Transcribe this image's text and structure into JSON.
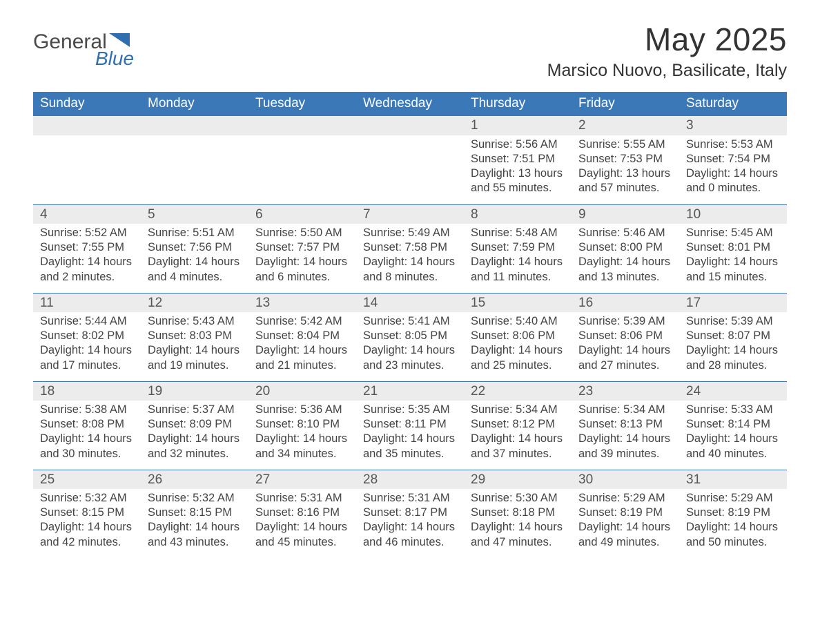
{
  "brand": {
    "name1": "General",
    "name2": "Blue"
  },
  "title": "May 2025",
  "location": "Marsico Nuovo, Basilicate, Italy",
  "colors": {
    "header_bg": "#3b78b8",
    "header_text": "#ffffff",
    "daynum_bg": "#ececec",
    "row_border": "#3b78b8",
    "body_text": "#444444",
    "title_text": "#333333",
    "brand_blue": "#2f6fb0",
    "page_bg": "#ffffff"
  },
  "typography": {
    "title_fontsize": 46,
    "location_fontsize": 25,
    "weekday_fontsize": 19,
    "daynum_fontsize": 19,
    "body_fontsize": 16.5,
    "font_family": "Arial"
  },
  "weekdays": [
    "Sunday",
    "Monday",
    "Tuesday",
    "Wednesday",
    "Thursday",
    "Friday",
    "Saturday"
  ],
  "weeks": [
    [
      {
        "day": "",
        "sunrise": "",
        "sunset": "",
        "daylight": ""
      },
      {
        "day": "",
        "sunrise": "",
        "sunset": "",
        "daylight": ""
      },
      {
        "day": "",
        "sunrise": "",
        "sunset": "",
        "daylight": ""
      },
      {
        "day": "",
        "sunrise": "",
        "sunset": "",
        "daylight": ""
      },
      {
        "day": "1",
        "sunrise": "Sunrise: 5:56 AM",
        "sunset": "Sunset: 7:51 PM",
        "daylight": "Daylight: 13 hours and 55 minutes."
      },
      {
        "day": "2",
        "sunrise": "Sunrise: 5:55 AM",
        "sunset": "Sunset: 7:53 PM",
        "daylight": "Daylight: 13 hours and 57 minutes."
      },
      {
        "day": "3",
        "sunrise": "Sunrise: 5:53 AM",
        "sunset": "Sunset: 7:54 PM",
        "daylight": "Daylight: 14 hours and 0 minutes."
      }
    ],
    [
      {
        "day": "4",
        "sunrise": "Sunrise: 5:52 AM",
        "sunset": "Sunset: 7:55 PM",
        "daylight": "Daylight: 14 hours and 2 minutes."
      },
      {
        "day": "5",
        "sunrise": "Sunrise: 5:51 AM",
        "sunset": "Sunset: 7:56 PM",
        "daylight": "Daylight: 14 hours and 4 minutes."
      },
      {
        "day": "6",
        "sunrise": "Sunrise: 5:50 AM",
        "sunset": "Sunset: 7:57 PM",
        "daylight": "Daylight: 14 hours and 6 minutes."
      },
      {
        "day": "7",
        "sunrise": "Sunrise: 5:49 AM",
        "sunset": "Sunset: 7:58 PM",
        "daylight": "Daylight: 14 hours and 8 minutes."
      },
      {
        "day": "8",
        "sunrise": "Sunrise: 5:48 AM",
        "sunset": "Sunset: 7:59 PM",
        "daylight": "Daylight: 14 hours and 11 minutes."
      },
      {
        "day": "9",
        "sunrise": "Sunrise: 5:46 AM",
        "sunset": "Sunset: 8:00 PM",
        "daylight": "Daylight: 14 hours and 13 minutes."
      },
      {
        "day": "10",
        "sunrise": "Sunrise: 5:45 AM",
        "sunset": "Sunset: 8:01 PM",
        "daylight": "Daylight: 14 hours and 15 minutes."
      }
    ],
    [
      {
        "day": "11",
        "sunrise": "Sunrise: 5:44 AM",
        "sunset": "Sunset: 8:02 PM",
        "daylight": "Daylight: 14 hours and 17 minutes."
      },
      {
        "day": "12",
        "sunrise": "Sunrise: 5:43 AM",
        "sunset": "Sunset: 8:03 PM",
        "daylight": "Daylight: 14 hours and 19 minutes."
      },
      {
        "day": "13",
        "sunrise": "Sunrise: 5:42 AM",
        "sunset": "Sunset: 8:04 PM",
        "daylight": "Daylight: 14 hours and 21 minutes."
      },
      {
        "day": "14",
        "sunrise": "Sunrise: 5:41 AM",
        "sunset": "Sunset: 8:05 PM",
        "daylight": "Daylight: 14 hours and 23 minutes."
      },
      {
        "day": "15",
        "sunrise": "Sunrise: 5:40 AM",
        "sunset": "Sunset: 8:06 PM",
        "daylight": "Daylight: 14 hours and 25 minutes."
      },
      {
        "day": "16",
        "sunrise": "Sunrise: 5:39 AM",
        "sunset": "Sunset: 8:06 PM",
        "daylight": "Daylight: 14 hours and 27 minutes."
      },
      {
        "day": "17",
        "sunrise": "Sunrise: 5:39 AM",
        "sunset": "Sunset: 8:07 PM",
        "daylight": "Daylight: 14 hours and 28 minutes."
      }
    ],
    [
      {
        "day": "18",
        "sunrise": "Sunrise: 5:38 AM",
        "sunset": "Sunset: 8:08 PM",
        "daylight": "Daylight: 14 hours and 30 minutes."
      },
      {
        "day": "19",
        "sunrise": "Sunrise: 5:37 AM",
        "sunset": "Sunset: 8:09 PM",
        "daylight": "Daylight: 14 hours and 32 minutes."
      },
      {
        "day": "20",
        "sunrise": "Sunrise: 5:36 AM",
        "sunset": "Sunset: 8:10 PM",
        "daylight": "Daylight: 14 hours and 34 minutes."
      },
      {
        "day": "21",
        "sunrise": "Sunrise: 5:35 AM",
        "sunset": "Sunset: 8:11 PM",
        "daylight": "Daylight: 14 hours and 35 minutes."
      },
      {
        "day": "22",
        "sunrise": "Sunrise: 5:34 AM",
        "sunset": "Sunset: 8:12 PM",
        "daylight": "Daylight: 14 hours and 37 minutes."
      },
      {
        "day": "23",
        "sunrise": "Sunrise: 5:34 AM",
        "sunset": "Sunset: 8:13 PM",
        "daylight": "Daylight: 14 hours and 39 minutes."
      },
      {
        "day": "24",
        "sunrise": "Sunrise: 5:33 AM",
        "sunset": "Sunset: 8:14 PM",
        "daylight": "Daylight: 14 hours and 40 minutes."
      }
    ],
    [
      {
        "day": "25",
        "sunrise": "Sunrise: 5:32 AM",
        "sunset": "Sunset: 8:15 PM",
        "daylight": "Daylight: 14 hours and 42 minutes."
      },
      {
        "day": "26",
        "sunrise": "Sunrise: 5:32 AM",
        "sunset": "Sunset: 8:15 PM",
        "daylight": "Daylight: 14 hours and 43 minutes."
      },
      {
        "day": "27",
        "sunrise": "Sunrise: 5:31 AM",
        "sunset": "Sunset: 8:16 PM",
        "daylight": "Daylight: 14 hours and 45 minutes."
      },
      {
        "day": "28",
        "sunrise": "Sunrise: 5:31 AM",
        "sunset": "Sunset: 8:17 PM",
        "daylight": "Daylight: 14 hours and 46 minutes."
      },
      {
        "day": "29",
        "sunrise": "Sunrise: 5:30 AM",
        "sunset": "Sunset: 8:18 PM",
        "daylight": "Daylight: 14 hours and 47 minutes."
      },
      {
        "day": "30",
        "sunrise": "Sunrise: 5:29 AM",
        "sunset": "Sunset: 8:19 PM",
        "daylight": "Daylight: 14 hours and 49 minutes."
      },
      {
        "day": "31",
        "sunrise": "Sunrise: 5:29 AM",
        "sunset": "Sunset: 8:19 PM",
        "daylight": "Daylight: 14 hours and 50 minutes."
      }
    ]
  ]
}
